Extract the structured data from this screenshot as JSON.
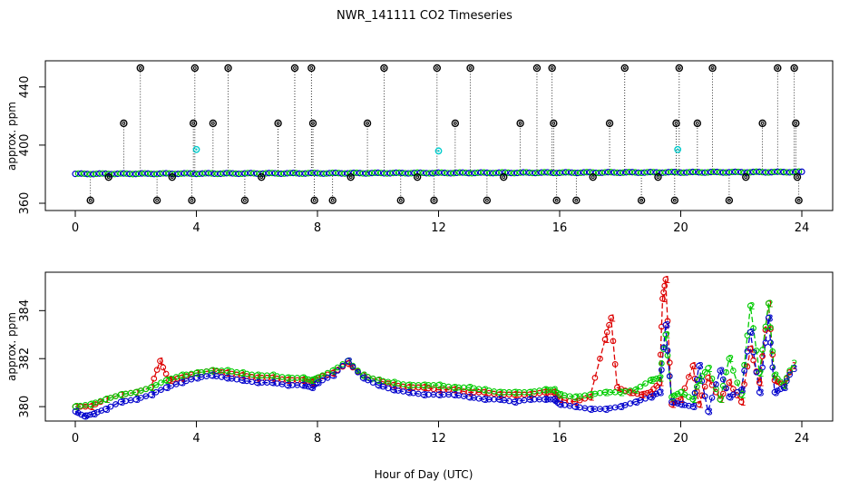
{
  "chart_data": [
    {
      "type": "scatter",
      "title": "NWR_141111  CO2 Timeseries",
      "xlabel": "",
      "ylabel": "approx. ppm",
      "xlim": [
        0,
        24
      ],
      "ylim": [
        355,
        458
      ],
      "x_ticks": [
        "0",
        "4",
        "8",
        "12",
        "16",
        "20",
        "24"
      ],
      "y_ticks": [
        "360",
        "400",
        "440"
      ],
      "y_tick_values": [
        360,
        400,
        440
      ],
      "grid": false,
      "baseline": {
        "name": "blue/green series (overlapping)",
        "start_value": 380.2,
        "end_value": 381.5
      },
      "cyan_points": [
        {
          "x": 4.0,
          "y": 397
        },
        {
          "x": 12.0,
          "y": 396
        },
        {
          "x": 19.9,
          "y": 397
        }
      ],
      "spikes": [
        {
          "x": 0.5,
          "y": 362
        },
        {
          "x": 1.1,
          "y": 378
        },
        {
          "x": 1.6,
          "y": 415
        },
        {
          "x": 2.15,
          "y": 453
        },
        {
          "x": 2.7,
          "y": 362
        },
        {
          "x": 3.2,
          "y": 378
        },
        {
          "x": 3.85,
          "y": 362
        },
        {
          "x": 3.9,
          "y": 415
        },
        {
          "x": 3.95,
          "y": 453
        },
        {
          "x": 4.55,
          "y": 415
        },
        {
          "x": 5.05,
          "y": 453
        },
        {
          "x": 5.6,
          "y": 362
        },
        {
          "x": 6.15,
          "y": 378
        },
        {
          "x": 6.7,
          "y": 415
        },
        {
          "x": 7.25,
          "y": 453
        },
        {
          "x": 7.8,
          "y": 453
        },
        {
          "x": 7.85,
          "y": 415
        },
        {
          "x": 7.9,
          "y": 362
        },
        {
          "x": 8.5,
          "y": 362
        },
        {
          "x": 9.1,
          "y": 378
        },
        {
          "x": 9.65,
          "y": 415
        },
        {
          "x": 10.2,
          "y": 453
        },
        {
          "x": 10.75,
          "y": 362
        },
        {
          "x": 11.3,
          "y": 378
        },
        {
          "x": 11.85,
          "y": 362
        },
        {
          "x": 11.95,
          "y": 453
        },
        {
          "x": 12.55,
          "y": 415
        },
        {
          "x": 13.05,
          "y": 453
        },
        {
          "x": 13.6,
          "y": 362
        },
        {
          "x": 14.15,
          "y": 378
        },
        {
          "x": 14.7,
          "y": 415
        },
        {
          "x": 15.25,
          "y": 453
        },
        {
          "x": 15.75,
          "y": 453
        },
        {
          "x": 15.8,
          "y": 415
        },
        {
          "x": 15.9,
          "y": 362
        },
        {
          "x": 16.55,
          "y": 362
        },
        {
          "x": 17.1,
          "y": 378
        },
        {
          "x": 17.65,
          "y": 415
        },
        {
          "x": 18.15,
          "y": 453
        },
        {
          "x": 18.7,
          "y": 362
        },
        {
          "x": 19.25,
          "y": 378
        },
        {
          "x": 19.8,
          "y": 362
        },
        {
          "x": 19.85,
          "y": 415
        },
        {
          "x": 19.95,
          "y": 453
        },
        {
          "x": 20.55,
          "y": 415
        },
        {
          "x": 21.05,
          "y": 453
        },
        {
          "x": 21.6,
          "y": 362
        },
        {
          "x": 22.15,
          "y": 378
        },
        {
          "x": 22.7,
          "y": 415
        },
        {
          "x": 23.2,
          "y": 453
        },
        {
          "x": 23.75,
          "y": 453
        },
        {
          "x": 23.8,
          "y": 415
        },
        {
          "x": 23.85,
          "y": 378
        },
        {
          "x": 23.9,
          "y": 362
        }
      ],
      "colors": {
        "spike": "#000000",
        "series1": "#dd0000",
        "series2": "#00cc00",
        "series3": "#0000cc",
        "cyan": "#00cccc"
      }
    },
    {
      "type": "line",
      "title": "",
      "xlabel": "Hour of Day (UTC)",
      "ylabel": "approx. ppm",
      "xlim": [
        0,
        24
      ],
      "ylim": [
        379.4,
        385.6
      ],
      "x_ticks": [
        "0",
        "4",
        "8",
        "12",
        "16",
        "20",
        "24"
      ],
      "y_ticks": [
        "380",
        "382",
        "384"
      ],
      "y_tick_values": [
        380,
        382,
        384
      ],
      "grid": false,
      "series": [
        {
          "name": "1",
          "color": "#dd0000",
          "marker": "1",
          "x": [
            0.0,
            0.5,
            1.0,
            1.5,
            2.0,
            2.5,
            2.8,
            3.1,
            3.5,
            4.0,
            4.5,
            5.0,
            5.5,
            6.0,
            6.5,
            7.0,
            7.5,
            7.8,
            8.0,
            8.5,
            9.0,
            9.5,
            10.0,
            10.5,
            11.0,
            11.5,
            12.0,
            12.5,
            13.0,
            13.5,
            14.0,
            14.5,
            15.0,
            15.5,
            15.8,
            16.0,
            16.5,
            17.0,
            17.5,
            17.7,
            17.9,
            18.3,
            18.7,
            19.0,
            19.3,
            19.4,
            19.5,
            19.7,
            20.0,
            20.4,
            20.6,
            20.9,
            21.3,
            21.6,
            22.0,
            22.3,
            22.6,
            22.9,
            23.1,
            23.4,
            23.7
          ],
          "values": [
            380.0,
            380.0,
            380.3,
            380.5,
            380.6,
            380.8,
            381.9,
            381.1,
            381.2,
            381.4,
            381.5,
            381.4,
            381.3,
            381.2,
            381.2,
            381.1,
            381.1,
            381.0,
            381.2,
            381.4,
            381.8,
            381.3,
            381.1,
            380.9,
            380.8,
            380.8,
            380.7,
            380.7,
            380.6,
            380.6,
            380.5,
            380.5,
            380.5,
            380.6,
            380.6,
            380.3,
            380.2,
            380.4,
            382.8,
            383.7,
            380.8,
            380.6,
            380.5,
            380.6,
            381.0,
            384.5,
            385.3,
            380.1,
            380.3,
            381.7,
            380.1,
            381.2,
            380.3,
            381.0,
            380.2,
            382.4,
            381.0,
            384.3,
            381.1,
            380.9,
            381.7
          ]
        },
        {
          "name": "2",
          "color": "#00cc00",
          "marker": "2",
          "x": [
            0.0,
            0.5,
            1.0,
            1.5,
            2.0,
            2.5,
            3.0,
            3.5,
            4.0,
            4.5,
            5.0,
            5.5,
            6.0,
            6.5,
            7.0,
            7.5,
            7.8,
            8.0,
            8.5,
            9.0,
            9.5,
            10.0,
            10.5,
            11.0,
            11.5,
            12.0,
            12.5,
            13.0,
            13.5,
            14.0,
            14.5,
            15.0,
            15.5,
            15.8,
            16.0,
            16.5,
            17.0,
            17.5,
            18.0,
            18.5,
            19.0,
            19.3,
            19.5,
            19.7,
            20.0,
            20.4,
            20.6,
            20.9,
            21.3,
            21.6,
            22.0,
            22.3,
            22.6,
            22.9,
            23.1,
            23.4,
            23.7
          ],
          "values": [
            380.0,
            380.1,
            380.3,
            380.5,
            380.6,
            380.8,
            381.1,
            381.3,
            381.4,
            381.5,
            381.5,
            381.4,
            381.3,
            381.3,
            381.2,
            381.2,
            381.1,
            381.2,
            381.5,
            381.9,
            381.3,
            381.1,
            381.0,
            380.9,
            380.9,
            380.9,
            380.8,
            380.8,
            380.7,
            380.6,
            380.6,
            380.6,
            380.7,
            380.7,
            380.5,
            380.4,
            380.5,
            380.6,
            380.6,
            380.7,
            381.1,
            381.2,
            383.0,
            380.4,
            380.6,
            380.3,
            381.1,
            381.6,
            380.3,
            382.0,
            380.5,
            384.2,
            381.4,
            384.3,
            381.3,
            380.9,
            381.8
          ]
        },
        {
          "name": "3",
          "color": "#0000cc",
          "marker": "3",
          "x": [
            0.0,
            0.3,
            0.6,
            1.0,
            1.5,
            2.0,
            2.5,
            3.0,
            3.5,
            4.0,
            4.5,
            5.0,
            5.5,
            6.0,
            6.5,
            7.0,
            7.5,
            7.8,
            8.0,
            8.5,
            9.0,
            9.5,
            10.0,
            10.5,
            11.0,
            11.5,
            12.0,
            12.5,
            13.0,
            13.5,
            14.0,
            14.5,
            15.0,
            15.5,
            15.8,
            16.0,
            16.5,
            17.0,
            17.5,
            18.0,
            18.5,
            19.0,
            19.3,
            19.5,
            19.7,
            20.0,
            20.4,
            20.6,
            20.9,
            21.3,
            21.6,
            22.0,
            22.3,
            22.6,
            22.9,
            23.1,
            23.4,
            23.7
          ],
          "values": [
            379.8,
            379.6,
            379.7,
            379.9,
            380.2,
            380.3,
            380.5,
            380.8,
            381.0,
            381.2,
            381.3,
            381.2,
            381.1,
            381.0,
            381.0,
            380.9,
            380.9,
            380.8,
            381.0,
            381.3,
            381.9,
            381.2,
            380.9,
            380.7,
            380.6,
            380.5,
            380.5,
            380.5,
            380.4,
            380.3,
            380.3,
            380.2,
            380.3,
            380.3,
            380.3,
            380.1,
            380.0,
            379.9,
            379.9,
            380.0,
            380.2,
            380.4,
            380.6,
            383.4,
            380.2,
            380.1,
            380.0,
            381.7,
            379.8,
            381.5,
            380.4,
            380.7,
            383.1,
            380.6,
            383.7,
            380.6,
            380.8,
            381.6
          ]
        }
      ],
      "colors": {
        "series1": "#dd0000",
        "series2": "#00cc00",
        "series3": "#0000cc"
      }
    }
  ]
}
